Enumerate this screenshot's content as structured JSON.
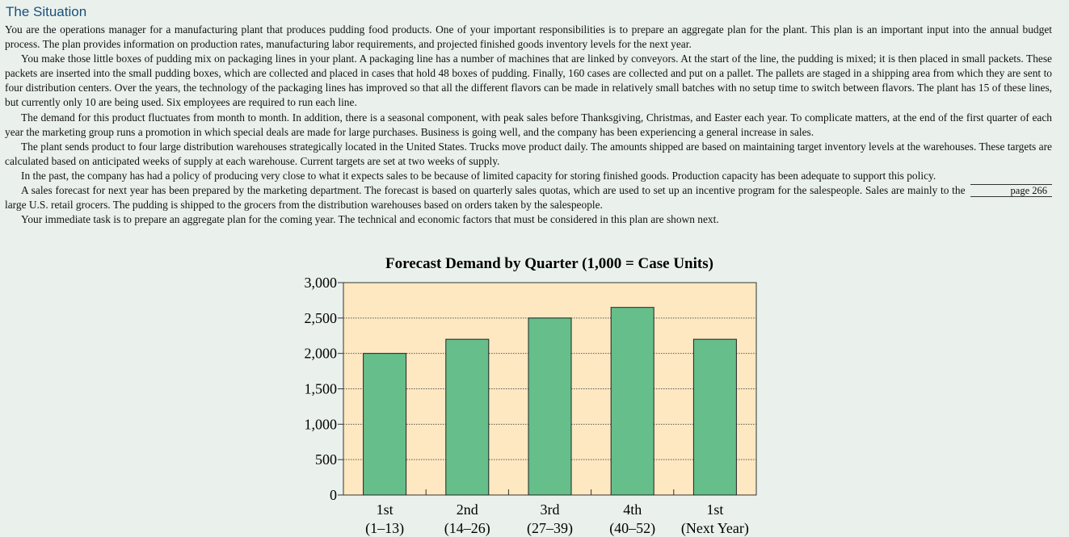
{
  "section": {
    "heading": "The Situation",
    "paragraphs": [
      "You are the operations manager for a manufacturing plant that produces pudding food products. One of your important responsibilities is to prepare an aggregate plan for the plant. This plan is an important input into the annual budget process. The plan provides information on production rates, manufacturing labor requirements, and projected finished goods inventory levels for the next year.",
      "You make those little boxes of pudding mix on packaging lines in your plant. A packaging line has a number of machines that are linked by conveyors. At the start of the line, the pudding is mixed; it is then placed in small packets. These packets are inserted into the small pudding boxes, which are collected and placed in cases that hold 48 boxes of pudding. Finally, 160 cases are collected and put on a pallet. The pallets are staged in a shipping area from which they are sent to four distribution centers. Over the years, the technology of the packaging lines has improved so that all the different flavors can be made in relatively small batches with no setup time to switch between flavors. The plant has 15 of these lines, but currently only 10 are being used. Six employees are required to run each line.",
      "The demand for this product fluctuates from month to month. In addition, there is a seasonal component, with peak sales before Thanksgiving, Christmas, and Easter each year. To complicate matters, at the end of the first quarter of each year the marketing group runs a promotion in which special deals are made for large purchases. Business is going well, and the company has been experiencing a general increase in sales.",
      "The plant sends product to four large distribution warehouses strategically located in the United States. Trucks move product daily. The amounts shipped are based on maintaining target inventory levels at the warehouses. These targets are calculated based on anticipated weeks of supply at each warehouse. Current targets are set at two weeks of supply.",
      "In the past, the company has had a policy of producing very close to what it expects sales to be because of limited capacity for storing finished goods. Production capacity has been adequate to support this policy.",
      "A sales forecast for next year has been prepared by the marketing department. The forecast is based on quarterly sales quotas, which are used to set up an incentive program for the salespeople. Sales are mainly to the large U.S. retail grocers. The pudding is shipped to the grocers from the distribution warehouses based on orders taken by the salespeople.",
      "Your immediate task is to prepare an aggregate plan for the coming year. The technical and economic factors that must be considered in this plan are shown next."
    ],
    "page_reference": "page 266"
  },
  "chart_data": {
    "type": "bar",
    "title": "Forecast Demand by Quarter (1,000 = Case Units)",
    "categories": [
      "1st\n(1–13)",
      "2nd\n(14–26)",
      "3rd\n(27–39)",
      "4th\n(40–52)",
      "1st\n(Next Year)"
    ],
    "category_lines": [
      [
        "1st",
        "(1–13)"
      ],
      [
        "2nd",
        "(14–26)"
      ],
      [
        "3rd",
        "(27–39)"
      ],
      [
        "4th",
        "(40–52)"
      ],
      [
        "1st",
        "(Next Year)"
      ]
    ],
    "values": [
      2000,
      2200,
      2500,
      2650,
      2200
    ],
    "ylim": [
      0,
      3000
    ],
    "yticks": [
      0,
      500,
      1000,
      1500,
      2000,
      2500,
      3000
    ],
    "ytick_labels": [
      "0",
      "500",
      "1,000",
      "1,500",
      "2,000",
      "2,500",
      "3,000"
    ],
    "xlabel": "",
    "ylabel": "",
    "grid": "dotted horizontal",
    "colors": {
      "bar": "#66bf8a",
      "bar_edge": "#222222",
      "plot_bg": "#fde8c2",
      "plot_border": "#333333",
      "gridline": "#555555"
    }
  }
}
